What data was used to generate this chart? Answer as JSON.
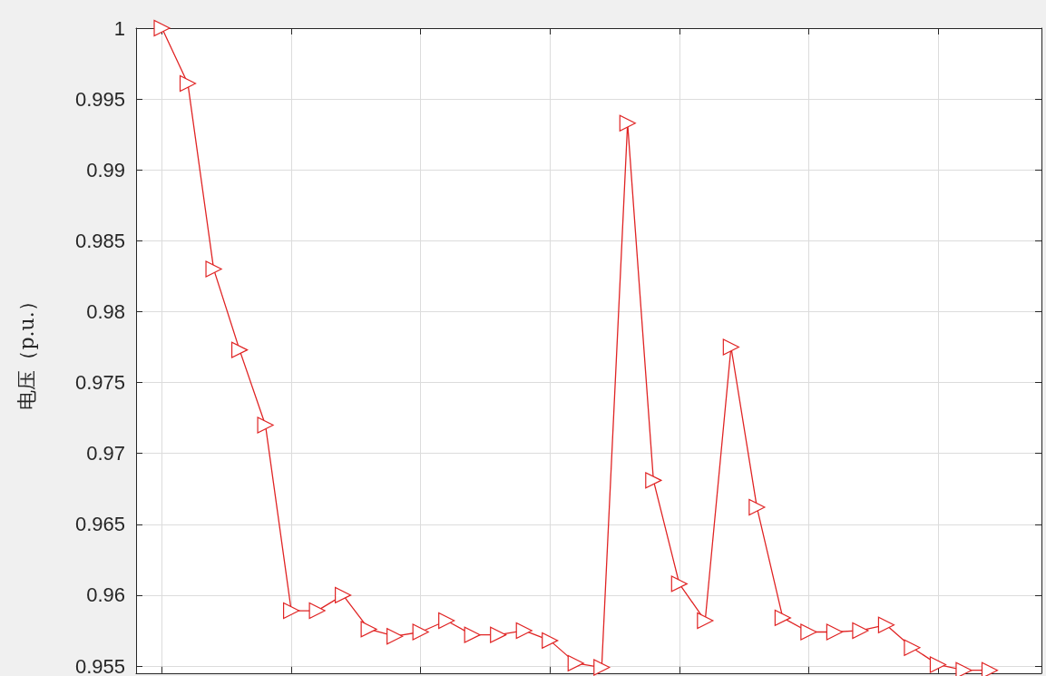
{
  "chart_data": {
    "type": "line",
    "ylabel": "电压（p.u.）",
    "categories": [
      null,
      null,
      null,
      null,
      null,
      null,
      null,
      null,
      null,
      null,
      null,
      null,
      null,
      null,
      null,
      null,
      null,
      null,
      null,
      null,
      null,
      null,
      null,
      null,
      null,
      null,
      null,
      null,
      null,
      null,
      null,
      null,
      null
    ],
    "series": [
      {
        "color": "#e02424",
        "values": [
          1,
          0.9961,
          0.983,
          0.9773,
          0.972,
          0.9589,
          0.9589,
          0.96,
          0.9576,
          0.9571,
          0.9574,
          0.9582,
          0.9572,
          0.9572,
          0.9575,
          0.9568,
          0.9552,
          0.9549,
          0.9933,
          0.9681,
          0.9608,
          0.9582,
          0.9775,
          0.9662,
          0.9584,
          0.9574,
          0.9574,
          0.9575,
          0.9579,
          0.9563,
          0.9551,
          0.9547,
          0.9547
        ]
      }
    ],
    "ylim": [
      0.9545,
      1
    ],
    "yticks": [
      0.955,
      0.96,
      0.965,
      0.97,
      0.975,
      0.98,
      0.985,
      0.99,
      0.995,
      1
    ],
    "grid": true,
    "marker": "triangle",
    "line_style": "solid",
    "tick_labels": "y"
  }
}
